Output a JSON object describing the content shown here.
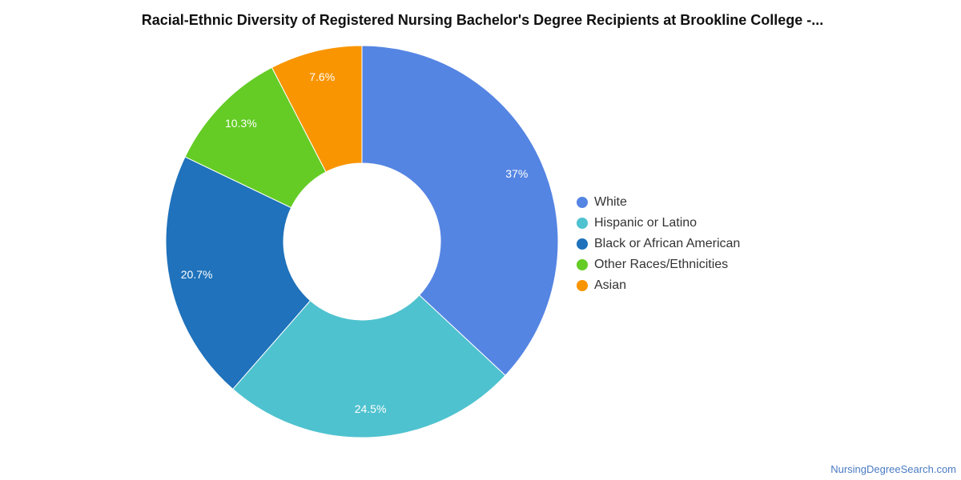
{
  "chart_data": {
    "type": "pie",
    "title": "Racial-Ethnic Diversity of Registered Nursing Bachelor's Degree Recipients at Brookline College -...",
    "donut": true,
    "legend_position": "right",
    "series": [
      {
        "name": "White",
        "value": 37,
        "label": "37%",
        "color": "#5585e3"
      },
      {
        "name": "Hispanic or Latino",
        "value": 24.5,
        "label": "24.5%",
        "color": "#4fc2cf"
      },
      {
        "name": "Black or African American",
        "value": 20.7,
        "label": "20.7%",
        "color": "#1f72bb"
      },
      {
        "name": "Other Races/Ethnicities",
        "value": 10.3,
        "label": "10.3%",
        "color": "#64cc25"
      },
      {
        "name": "Asian",
        "value": 7.6,
        "label": "7.6%",
        "color": "#f99500"
      }
    ]
  },
  "footer": {
    "source": "NursingDegreeSearch.com"
  }
}
